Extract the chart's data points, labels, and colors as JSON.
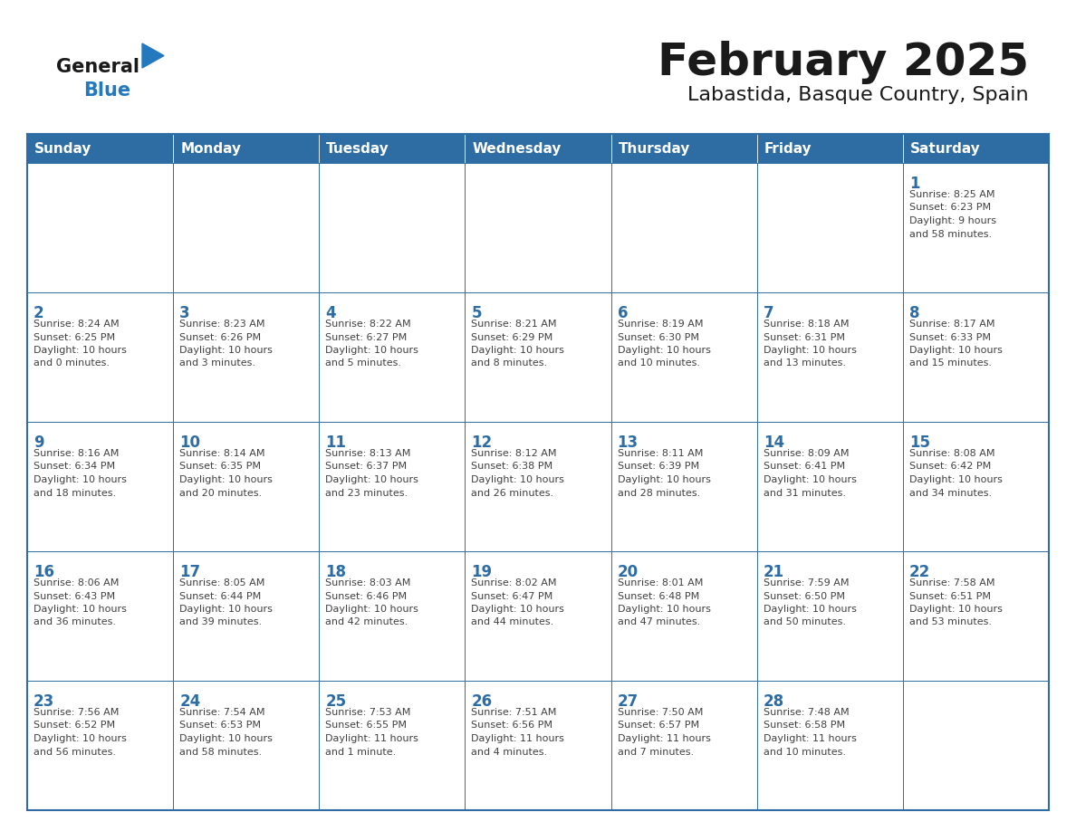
{
  "title": "February 2025",
  "subtitle": "Labastida, Basque Country, Spain",
  "days_of_week": [
    "Sunday",
    "Monday",
    "Tuesday",
    "Wednesday",
    "Thursday",
    "Friday",
    "Saturday"
  ],
  "header_bg": "#2E6DA4",
  "header_text": "#FFFFFF",
  "cell_bg": "#FFFFFF",
  "cell_bg_alt": "#f0f4f8",
  "cell_border": "#2E6DA4",
  "day_num_color": "#2E6DA4",
  "info_color": "#404040",
  "title_color": "#1a1a1a",
  "logo_general_color": "#1a1a1a",
  "logo_blue_color": "#2479BE",
  "bg_color": "#FFFFFF",
  "weeks": [
    [
      {
        "day": null,
        "info": ""
      },
      {
        "day": null,
        "info": ""
      },
      {
        "day": null,
        "info": ""
      },
      {
        "day": null,
        "info": ""
      },
      {
        "day": null,
        "info": ""
      },
      {
        "day": null,
        "info": ""
      },
      {
        "day": 1,
        "info": "Sunrise: 8:25 AM\nSunset: 6:23 PM\nDaylight: 9 hours\nand 58 minutes."
      }
    ],
    [
      {
        "day": 2,
        "info": "Sunrise: 8:24 AM\nSunset: 6:25 PM\nDaylight: 10 hours\nand 0 minutes."
      },
      {
        "day": 3,
        "info": "Sunrise: 8:23 AM\nSunset: 6:26 PM\nDaylight: 10 hours\nand 3 minutes."
      },
      {
        "day": 4,
        "info": "Sunrise: 8:22 AM\nSunset: 6:27 PM\nDaylight: 10 hours\nand 5 minutes."
      },
      {
        "day": 5,
        "info": "Sunrise: 8:21 AM\nSunset: 6:29 PM\nDaylight: 10 hours\nand 8 minutes."
      },
      {
        "day": 6,
        "info": "Sunrise: 8:19 AM\nSunset: 6:30 PM\nDaylight: 10 hours\nand 10 minutes."
      },
      {
        "day": 7,
        "info": "Sunrise: 8:18 AM\nSunset: 6:31 PM\nDaylight: 10 hours\nand 13 minutes."
      },
      {
        "day": 8,
        "info": "Sunrise: 8:17 AM\nSunset: 6:33 PM\nDaylight: 10 hours\nand 15 minutes."
      }
    ],
    [
      {
        "day": 9,
        "info": "Sunrise: 8:16 AM\nSunset: 6:34 PM\nDaylight: 10 hours\nand 18 minutes."
      },
      {
        "day": 10,
        "info": "Sunrise: 8:14 AM\nSunset: 6:35 PM\nDaylight: 10 hours\nand 20 minutes."
      },
      {
        "day": 11,
        "info": "Sunrise: 8:13 AM\nSunset: 6:37 PM\nDaylight: 10 hours\nand 23 minutes."
      },
      {
        "day": 12,
        "info": "Sunrise: 8:12 AM\nSunset: 6:38 PM\nDaylight: 10 hours\nand 26 minutes."
      },
      {
        "day": 13,
        "info": "Sunrise: 8:11 AM\nSunset: 6:39 PM\nDaylight: 10 hours\nand 28 minutes."
      },
      {
        "day": 14,
        "info": "Sunrise: 8:09 AM\nSunset: 6:41 PM\nDaylight: 10 hours\nand 31 minutes."
      },
      {
        "day": 15,
        "info": "Sunrise: 8:08 AM\nSunset: 6:42 PM\nDaylight: 10 hours\nand 34 minutes."
      }
    ],
    [
      {
        "day": 16,
        "info": "Sunrise: 8:06 AM\nSunset: 6:43 PM\nDaylight: 10 hours\nand 36 minutes."
      },
      {
        "day": 17,
        "info": "Sunrise: 8:05 AM\nSunset: 6:44 PM\nDaylight: 10 hours\nand 39 minutes."
      },
      {
        "day": 18,
        "info": "Sunrise: 8:03 AM\nSunset: 6:46 PM\nDaylight: 10 hours\nand 42 minutes."
      },
      {
        "day": 19,
        "info": "Sunrise: 8:02 AM\nSunset: 6:47 PM\nDaylight: 10 hours\nand 44 minutes."
      },
      {
        "day": 20,
        "info": "Sunrise: 8:01 AM\nSunset: 6:48 PM\nDaylight: 10 hours\nand 47 minutes."
      },
      {
        "day": 21,
        "info": "Sunrise: 7:59 AM\nSunset: 6:50 PM\nDaylight: 10 hours\nand 50 minutes."
      },
      {
        "day": 22,
        "info": "Sunrise: 7:58 AM\nSunset: 6:51 PM\nDaylight: 10 hours\nand 53 minutes."
      }
    ],
    [
      {
        "day": 23,
        "info": "Sunrise: 7:56 AM\nSunset: 6:52 PM\nDaylight: 10 hours\nand 56 minutes."
      },
      {
        "day": 24,
        "info": "Sunrise: 7:54 AM\nSunset: 6:53 PM\nDaylight: 10 hours\nand 58 minutes."
      },
      {
        "day": 25,
        "info": "Sunrise: 7:53 AM\nSunset: 6:55 PM\nDaylight: 11 hours\nand 1 minute."
      },
      {
        "day": 26,
        "info": "Sunrise: 7:51 AM\nSunset: 6:56 PM\nDaylight: 11 hours\nand 4 minutes."
      },
      {
        "day": 27,
        "info": "Sunrise: 7:50 AM\nSunset: 6:57 PM\nDaylight: 11 hours\nand 7 minutes."
      },
      {
        "day": 28,
        "info": "Sunrise: 7:48 AM\nSunset: 6:58 PM\nDaylight: 11 hours\nand 10 minutes."
      },
      {
        "day": null,
        "info": ""
      }
    ]
  ]
}
